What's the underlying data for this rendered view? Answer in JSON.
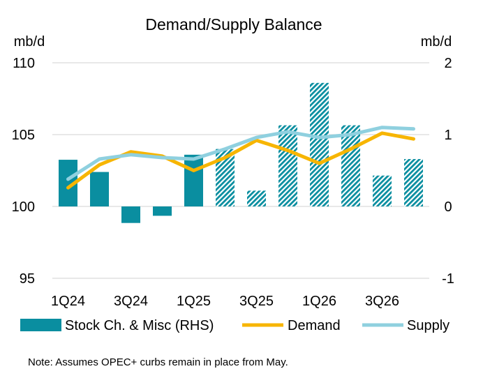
{
  "chart_data": {
    "type": "bar",
    "title": "Demand/Supply Balance",
    "ylabel": "mb/d",
    "y2label": "mb/d",
    "ylim": [
      95,
      110
    ],
    "y2lim": [
      -1,
      2
    ],
    "yticks": [
      "95",
      "100",
      "105",
      "110"
    ],
    "y2ticks": [
      "-1",
      "0",
      "1",
      "2"
    ],
    "categories": [
      "1Q24",
      "2Q24",
      "3Q24",
      "4Q24",
      "1Q25",
      "2Q25",
      "3Q25",
      "4Q25",
      "1Q26",
      "2Q26",
      "3Q26",
      "4Q26"
    ],
    "category_labels": [
      "1Q24",
      "",
      "3Q24",
      "",
      "1Q25",
      "",
      "3Q25",
      "",
      "1Q26",
      "",
      "3Q26",
      ""
    ],
    "forecast_from_index": 5,
    "grid": "horizontal",
    "legend_position": "bottom",
    "series": [
      {
        "name": "Stock Ch. & Misc (RHS)",
        "kind": "bar",
        "axis": "right",
        "color": "#0a8ea0",
        "values": [
          0.65,
          0.48,
          -0.23,
          -0.13,
          0.72,
          0.8,
          0.22,
          1.13,
          1.72,
          1.13,
          0.43,
          0.66
        ]
      },
      {
        "name": "Demand",
        "kind": "line",
        "axis": "left",
        "color": "#f7b500",
        "values": [
          101.3,
          102.9,
          103.8,
          103.5,
          102.5,
          103.4,
          104.6,
          103.9,
          103.0,
          104.0,
          105.1,
          104.7
        ]
      },
      {
        "name": "Supply",
        "kind": "line",
        "axis": "left",
        "color": "#8fd0df",
        "values": [
          101.9,
          103.3,
          103.6,
          103.4,
          103.3,
          104.0,
          104.8,
          105.2,
          104.8,
          105.0,
          105.5,
          105.4
        ]
      }
    ]
  },
  "note": "Note: Assumes OPEC+ curbs remain in place from May."
}
